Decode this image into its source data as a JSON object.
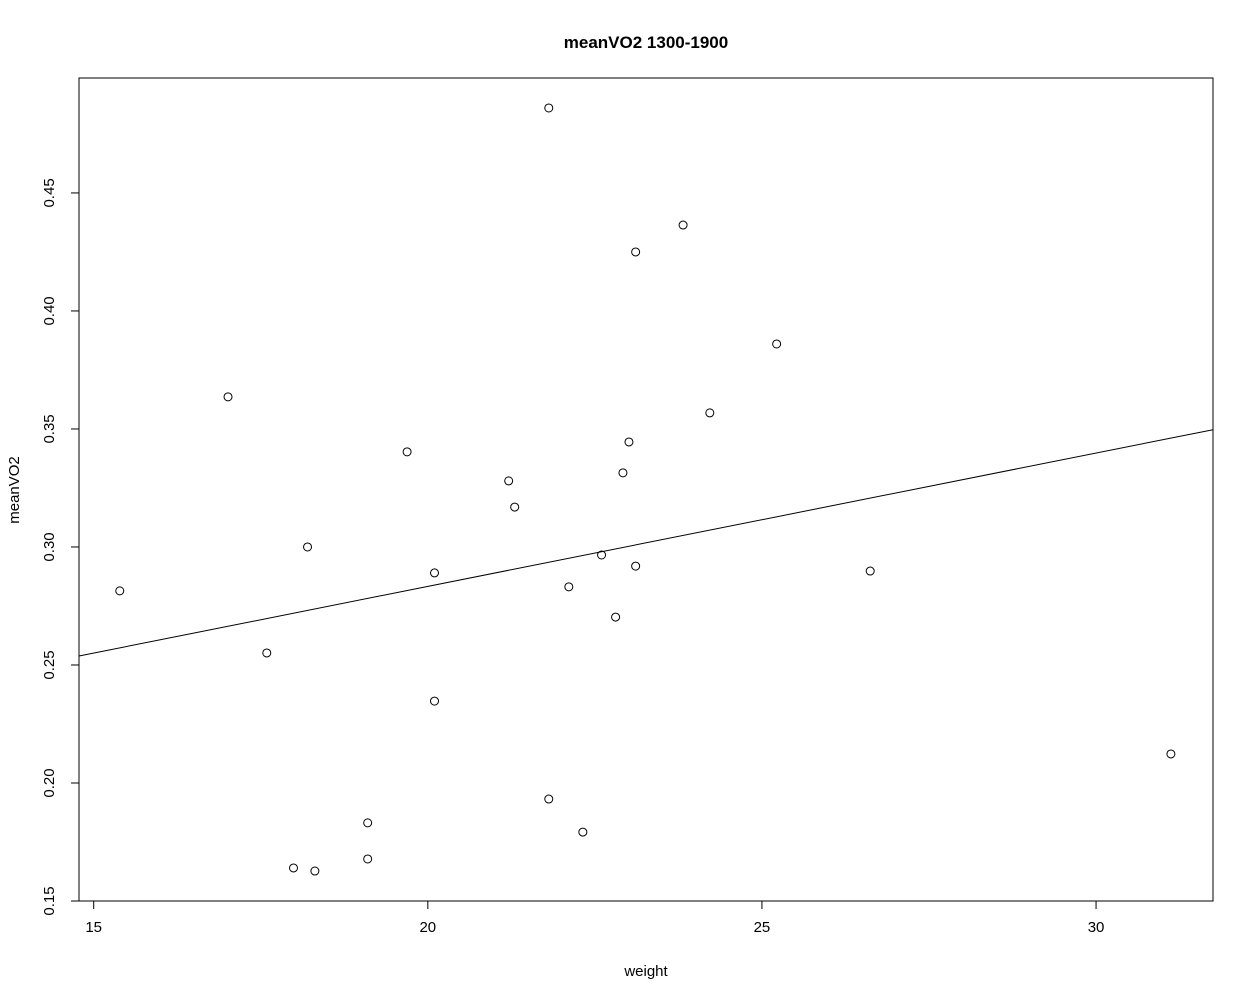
{
  "chart_data": {
    "type": "scatter",
    "title": "meanVO2 1300-1900",
    "xlabel": "weight",
    "ylabel": "meanVO2",
    "xlim": [
      14.78,
      31.75
    ],
    "ylim": [
      0.15,
      0.4987
    ],
    "xticks": [
      15,
      20,
      25,
      30
    ],
    "yticks": [
      0.15,
      0.2,
      0.25,
      0.3,
      0.35,
      0.4,
      0.45
    ],
    "xtick_labels": [
      "15",
      "20",
      "25",
      "30"
    ],
    "ytick_labels": [
      "0.15",
      "0.20",
      "0.25",
      "0.30",
      "0.35",
      "0.40",
      "0.45"
    ],
    "grid": false,
    "marker": "open-circle",
    "points": [
      [
        15.39,
        0.2814
      ],
      [
        17.01,
        0.3636
      ],
      [
        17.59,
        0.2551
      ],
      [
        17.99,
        0.164
      ],
      [
        18.2,
        0.3
      ],
      [
        18.31,
        0.1627
      ],
      [
        19.1,
        0.1831
      ],
      [
        19.1,
        0.1678
      ],
      [
        19.69,
        0.3403
      ],
      [
        20.1,
        0.289
      ],
      [
        20.1,
        0.2347
      ],
      [
        21.21,
        0.328
      ],
      [
        21.3,
        0.3169
      ],
      [
        21.81,
        0.486
      ],
      [
        21.81,
        0.1932
      ],
      [
        22.11,
        0.2831
      ],
      [
        22.32,
        0.1792
      ],
      [
        22.6,
        0.2966
      ],
      [
        22.81,
        0.2703
      ],
      [
        22.92,
        0.3314
      ],
      [
        23.01,
        0.3445
      ],
      [
        23.11,
        0.425
      ],
      [
        23.11,
        0.2919
      ],
      [
        23.82,
        0.4364
      ],
      [
        24.22,
        0.3568
      ],
      [
        25.22,
        0.386
      ],
      [
        26.62,
        0.2898
      ],
      [
        31.12,
        0.2123
      ]
    ],
    "fit_line": {
      "intercept": 0.1703,
      "slope": 0.00565
    }
  }
}
